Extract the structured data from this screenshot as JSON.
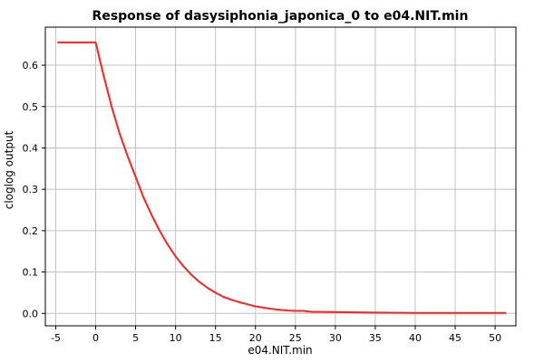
{
  "chart_data": {
    "type": "line",
    "title": "Response of dasysiphonia_japonica_0 to e04.NIT.min",
    "xlabel": "e04.NIT.min",
    "ylabel": "cloglog output",
    "xlim": [
      -6.3,
      52.6
    ],
    "ylim": [
      -0.03,
      0.692
    ],
    "xticks": [
      -5,
      0,
      5,
      10,
      15,
      20,
      25,
      30,
      35,
      40,
      45,
      50
    ],
    "yticks": [
      0.0,
      0.1,
      0.2,
      0.3,
      0.4,
      0.5,
      0.6
    ],
    "ytick_labels": [
      "0.0",
      "0.1",
      "0.2",
      "0.3",
      "0.4",
      "0.5",
      "0.6"
    ],
    "grid": true,
    "series_color": "#ff2020",
    "series": [
      {
        "x": [
          -4.7,
          0,
          1,
          2,
          3,
          4,
          5,
          6,
          7,
          8,
          9,
          10,
          11,
          12,
          13,
          14,
          15,
          16,
          17,
          18,
          19,
          20,
          21,
          22,
          23,
          24,
          25,
          26,
          27,
          30,
          35,
          40,
          45,
          51.3
        ],
        "y": [
          0.655,
          0.655,
          0.575,
          0.5,
          0.435,
          0.38,
          0.33,
          0.28,
          0.238,
          0.2,
          0.167,
          0.138,
          0.114,
          0.093,
          0.076,
          0.062,
          0.05,
          0.04,
          0.033,
          0.027,
          0.022,
          0.017,
          0.014,
          0.011,
          0.009,
          0.007,
          0.006,
          0.006,
          0.004,
          0.003,
          0.002,
          0.001,
          0.001,
          0.001
        ]
      }
    ]
  }
}
